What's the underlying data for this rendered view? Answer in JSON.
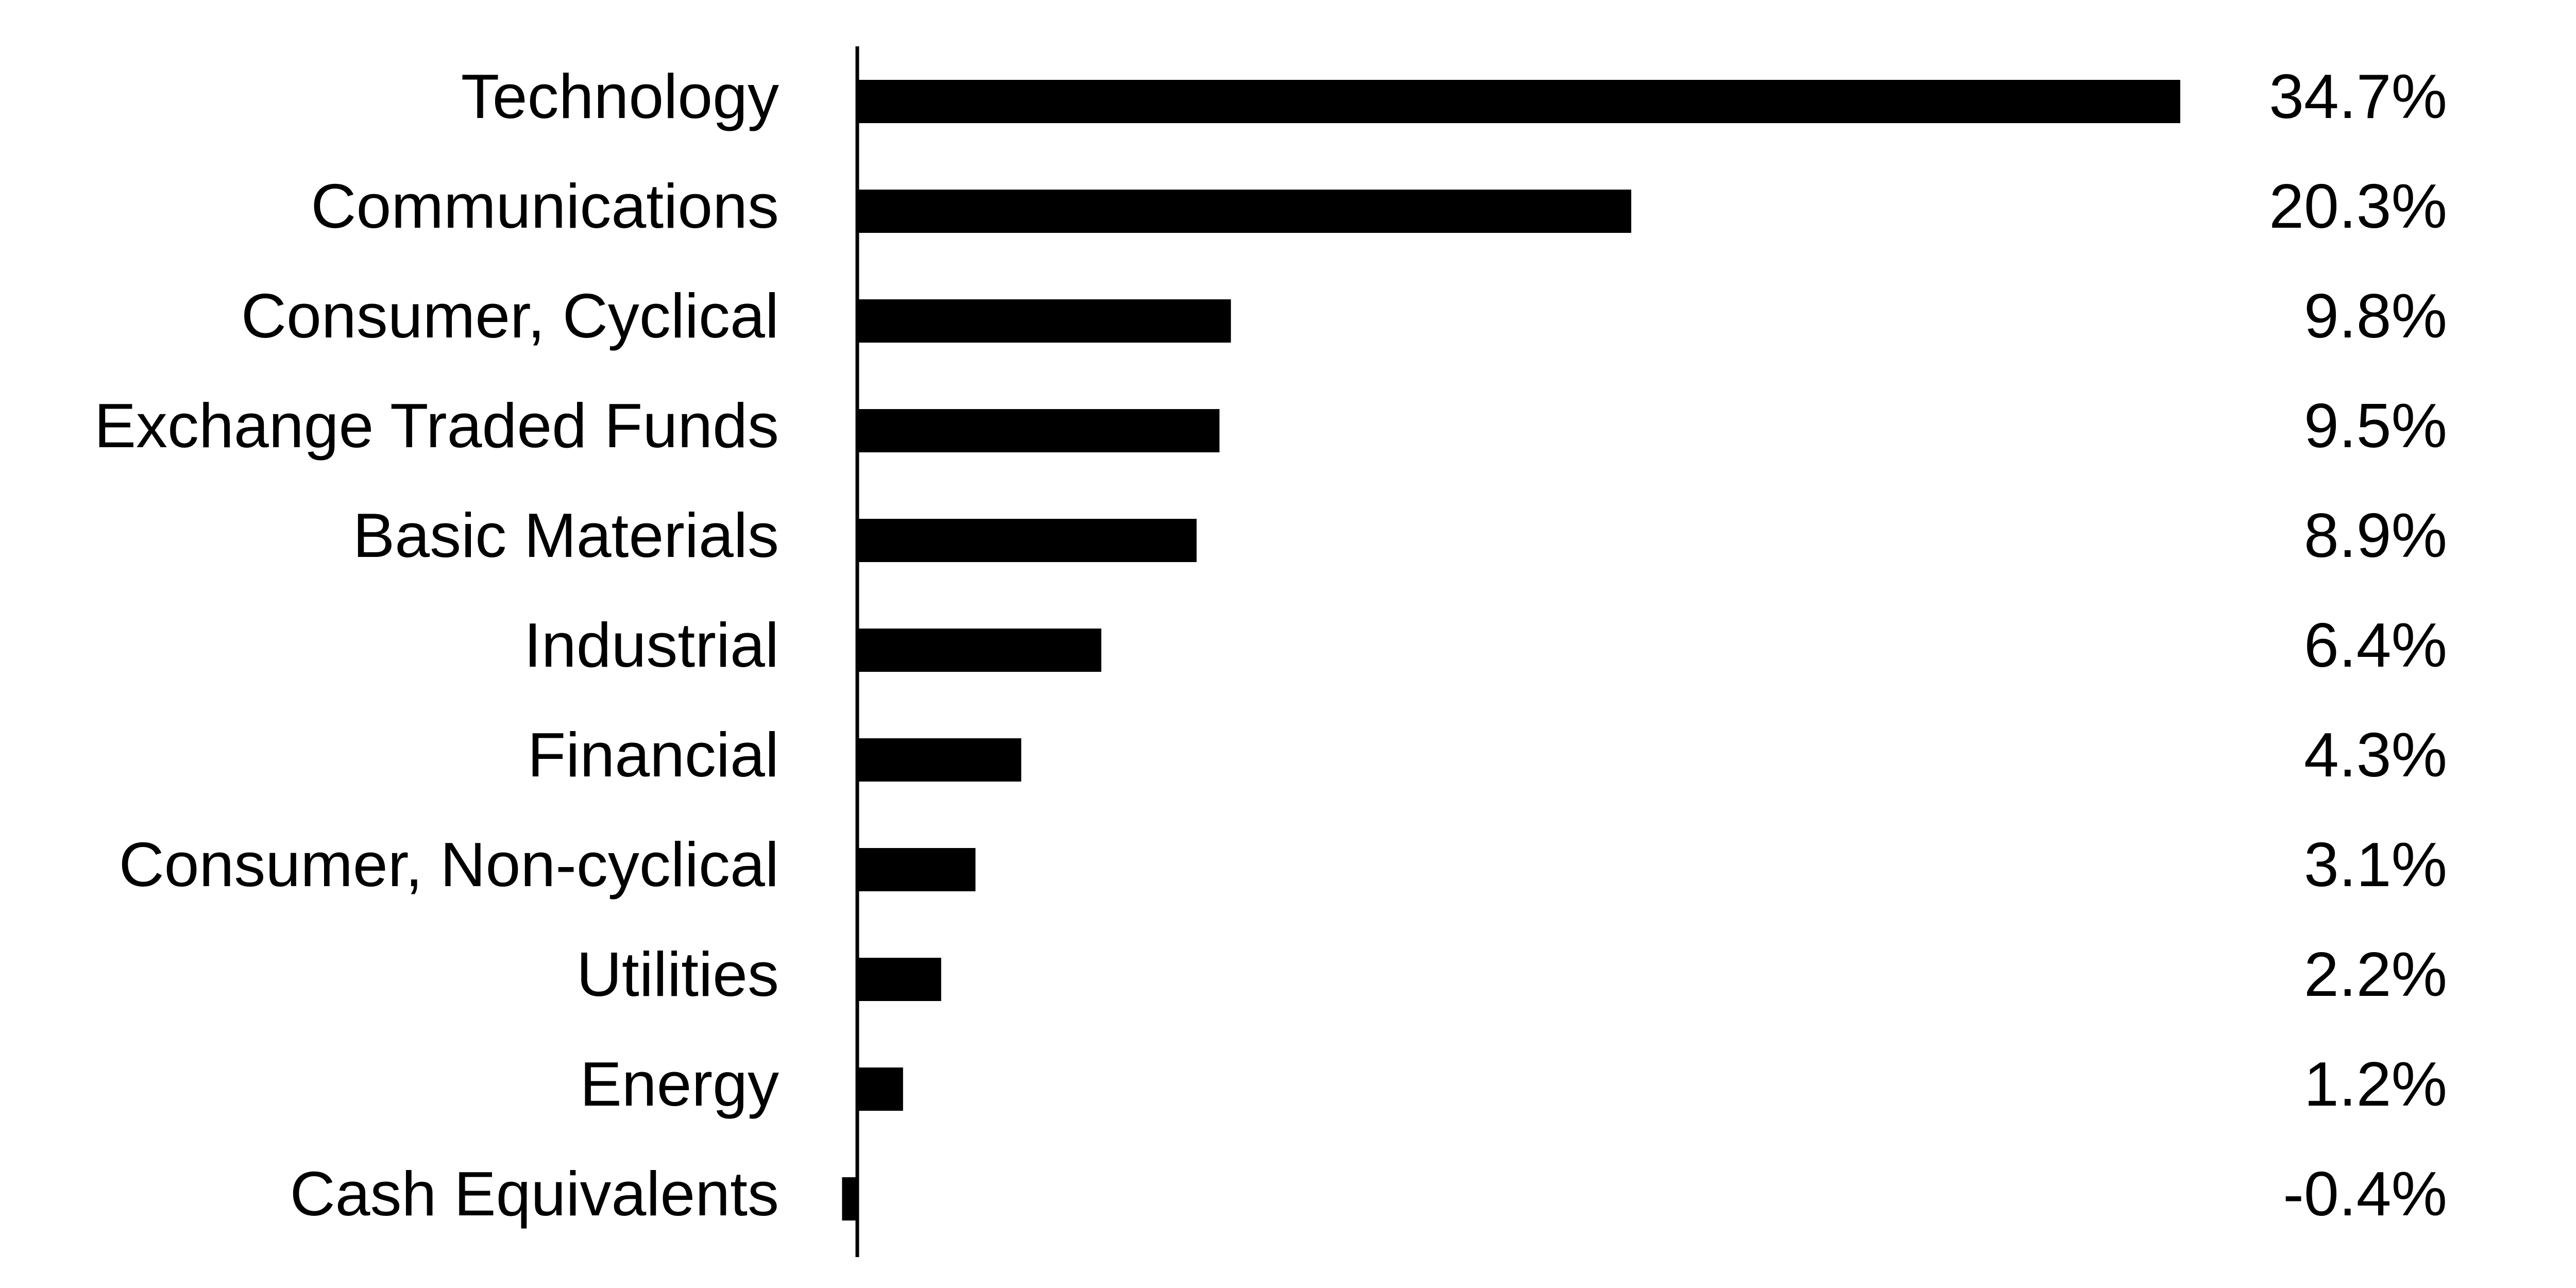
{
  "chart_data": {
    "type": "bar",
    "orientation": "horizontal",
    "color": "#000000",
    "categories": [
      "Technology",
      "Communications",
      "Consumer, Cyclical",
      "Exchange Traded Funds",
      "Basic Materials",
      "Industrial",
      "Financial",
      "Consumer, Non-cyclical",
      "Utilities",
      "Energy",
      "Cash Equivalents"
    ],
    "values": [
      34.7,
      20.3,
      9.8,
      9.5,
      8.9,
      6.4,
      4.3,
      3.1,
      2.2,
      1.2,
      -0.4
    ],
    "value_labels": [
      "34.7%",
      "20.3%",
      "9.8%",
      "9.5%",
      "8.9%",
      "6.4%",
      "4.3%",
      "3.1%",
      "2.2%",
      "1.2%",
      "-0.4%"
    ]
  }
}
